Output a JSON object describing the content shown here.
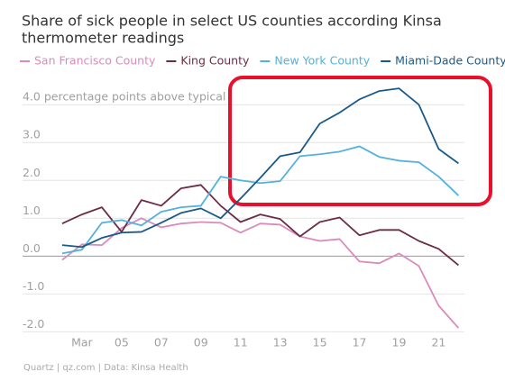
{
  "chart_data": {
    "type": "line",
    "title": [
      "Share of sick people in select US counties according Kinsa",
      "thermometer readings"
    ],
    "source": "Quartz | qz.com | Data: Kinsa Health",
    "x": [
      2,
      3,
      4,
      5,
      6,
      7,
      8,
      9,
      10,
      11,
      12,
      13,
      14,
      15,
      16,
      17,
      18,
      19,
      20,
      21,
      22
    ],
    "xlim": [
      0,
      22.3
    ],
    "xticks": [
      {
        "value": 3,
        "label": "Mar"
      },
      {
        "value": 5,
        "label": "05"
      },
      {
        "value": 7,
        "label": "07"
      },
      {
        "value": 9,
        "label": "09"
      },
      11,
      13,
      15,
      17,
      19,
      21
    ],
    "ylim": [
      -2.3,
      4.6
    ],
    "yticks": [
      {
        "value": -2,
        "label": "-2.0"
      },
      {
        "value": -1,
        "label": "-1.0"
      },
      {
        "value": 0,
        "label": "0.0"
      },
      {
        "value": 1,
        "label": "1.0"
      },
      {
        "value": 2,
        "label": "2.0"
      },
      {
        "value": 3,
        "label": "3.0"
      },
      {
        "value": 4,
        "label": "4.0 percentage points above typical"
      }
    ],
    "grid": true,
    "legend": "top",
    "series": [
      {
        "name": "San Francisco County",
        "color": "#d98bbd",
        "values": [
          -0.1,
          0.31,
          0.29,
          0.74,
          1.0,
          0.76,
          0.86,
          0.9,
          0.88,
          0.62,
          0.86,
          0.83,
          0.52,
          0.4,
          0.45,
          -0.14,
          -0.19,
          0.07,
          -0.26,
          -1.31,
          -1.9
        ]
      },
      {
        "name": "King County",
        "color": "#6b2c47",
        "values": [
          0.86,
          1.1,
          1.29,
          0.64,
          1.48,
          1.33,
          1.79,
          1.88,
          1.33,
          0.9,
          1.1,
          0.98,
          0.52,
          0.9,
          1.02,
          0.55,
          0.69,
          0.69,
          0.4,
          0.19,
          -0.24
        ]
      },
      {
        "name": "New York County",
        "color": "#52b2db",
        "values": [
          0.07,
          0.17,
          0.88,
          0.95,
          0.81,
          1.17,
          1.29,
          1.33,
          2.1,
          2.0,
          1.93,
          1.98,
          2.64,
          2.69,
          2.76,
          2.9,
          2.62,
          2.52,
          2.48,
          2.1,
          1.6
        ]
      },
      {
        "name": "Miami-Dade County",
        "color": "#1a5a8a",
        "values": [
          0.29,
          0.24,
          0.48,
          0.62,
          0.64,
          0.88,
          1.14,
          1.26,
          1.0,
          1.52,
          2.07,
          2.64,
          2.74,
          3.5,
          3.79,
          4.14,
          4.36,
          4.43,
          4.0,
          2.83,
          2.45
        ]
      }
    ]
  }
}
